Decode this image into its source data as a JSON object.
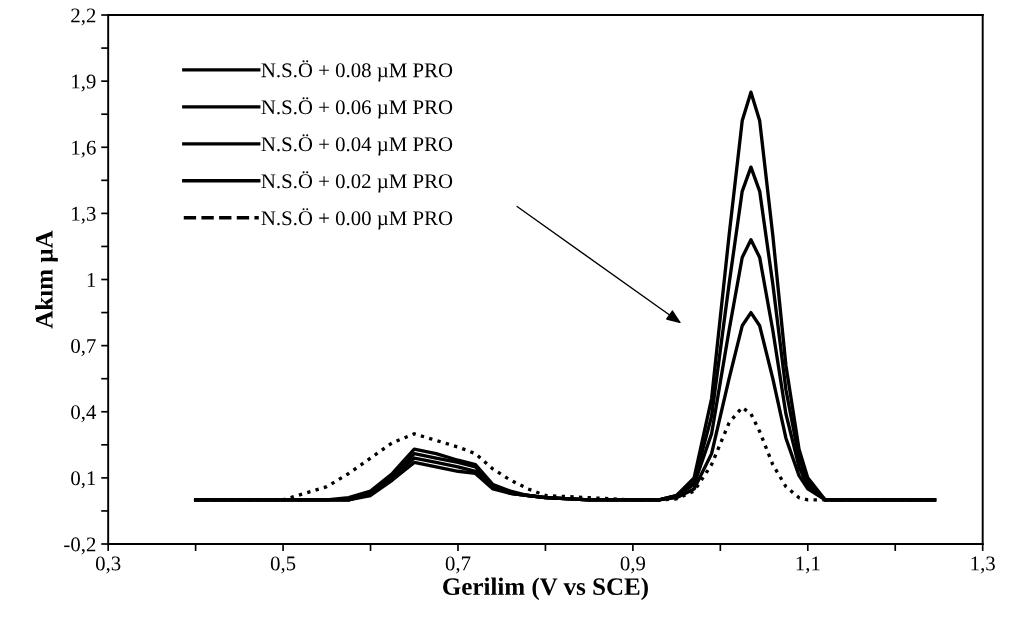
{
  "chart_data": {
    "type": "line",
    "xlabel": "Gerilim (V vs SCE)",
    "ylabel": "Akım µA",
    "x": [
      0.4,
      0.45,
      0.5,
      0.55,
      0.575,
      0.6,
      0.625,
      0.65,
      0.675,
      0.7,
      0.72,
      0.74,
      0.76,
      0.78,
      0.8,
      0.85,
      0.9,
      0.93,
      0.95,
      0.97,
      0.99,
      1.01,
      1.025,
      1.035,
      1.045,
      1.06,
      1.075,
      1.09,
      1.1,
      1.12,
      1.2,
      1.245
    ],
    "series": [
      {
        "name": "N.S.Ö + 0.08 µM PRO",
        "color": "#000000",
        "line_style": "solid",
        "values": [
          0,
          0,
          0,
          0,
          0,
          0.02,
          0.09,
          0.17,
          0.15,
          0.13,
          0.12,
          0.05,
          0.03,
          0.02,
          0.01,
          0,
          0,
          0,
          0.02,
          0.1,
          0.46,
          1.2,
          1.72,
          1.85,
          1.72,
          1.2,
          0.61,
          0.23,
          0.1,
          0,
          0,
          0
        ]
      },
      {
        "name": "N.S.Ö + 0.06 µM PRO",
        "color": "#000000",
        "line_style": "solid",
        "values": [
          0,
          0,
          0,
          0,
          0,
          0.03,
          0.1,
          0.19,
          0.17,
          0.15,
          0.13,
          0.06,
          0.03,
          0.02,
          0.01,
          0,
          0,
          0,
          0.02,
          0.08,
          0.38,
          0.98,
          1.4,
          1.51,
          1.4,
          0.98,
          0.5,
          0.19,
          0.08,
          0,
          0,
          0
        ]
      },
      {
        "name": "N.S.Ö + 0.04 µM PRO",
        "color": "#000000",
        "line_style": "solid",
        "values": [
          0,
          0,
          0,
          0,
          0,
          0.03,
          0.11,
          0.21,
          0.19,
          0.17,
          0.15,
          0.06,
          0.03,
          0.02,
          0.01,
          0,
          0,
          0,
          0.02,
          0.07,
          0.3,
          0.77,
          1.1,
          1.18,
          1.1,
          0.77,
          0.39,
          0.15,
          0.06,
          0,
          0,
          0
        ]
      },
      {
        "name": "N.S.Ö + 0.02 µM PRO",
        "color": "#000000",
        "line_style": "solid",
        "values": [
          0,
          0,
          0,
          0,
          0.01,
          0.04,
          0.12,
          0.23,
          0.21,
          0.18,
          0.16,
          0.07,
          0.04,
          0.02,
          0.01,
          0,
          0,
          0,
          0.01,
          0.05,
          0.21,
          0.55,
          0.79,
          0.85,
          0.79,
          0.55,
          0.28,
          0.11,
          0.05,
          0,
          0,
          0
        ]
      },
      {
        "name": "N.S.Ö + 0.00 µM PRO",
        "color": "#000000",
        "line_style": "dotted",
        "values": [
          0,
          0,
          0,
          0.06,
          0.12,
          0.19,
          0.26,
          0.3,
          0.27,
          0.24,
          0.21,
          0.14,
          0.09,
          0.05,
          0.02,
          0.01,
          0,
          0,
          0.005,
          0.04,
          0.16,
          0.35,
          0.42,
          0.39,
          0.31,
          0.16,
          0.06,
          0.01,
          0,
          0,
          0,
          0
        ]
      }
    ],
    "xlim": [
      0.3,
      1.3
    ],
    "xticks": [
      {
        "value": 0.3,
        "label": "0,3"
      },
      {
        "value": 0.4,
        "label": null
      },
      {
        "value": 0.5,
        "label": "0,5"
      },
      {
        "value": 0.6,
        "label": null
      },
      {
        "value": 0.7,
        "label": "0,7"
      },
      {
        "value": 0.8,
        "label": null
      },
      {
        "value": 0.9,
        "label": "0,9"
      },
      {
        "value": 1.0,
        "label": null
      },
      {
        "value": 1.1,
        "label": "1,1"
      },
      {
        "value": 1.2,
        "label": null
      },
      {
        "value": 1.3,
        "label": "1,3"
      }
    ],
    "ylim": [
      -0.2,
      2.2
    ],
    "yticks": [
      {
        "value": -0.2,
        "label": "-0,2"
      },
      {
        "value": -0.05,
        "label": null
      },
      {
        "value": 0.1,
        "label": "0,1"
      },
      {
        "value": 0.25,
        "label": null
      },
      {
        "value": 0.4,
        "label": "0,4"
      },
      {
        "value": 0.55,
        "label": null
      },
      {
        "value": 0.7,
        "label": "0,7"
      },
      {
        "value": 0.85,
        "label": null
      },
      {
        "value": 1,
        "label": "1"
      },
      {
        "value": 1.15,
        "label": null
      },
      {
        "value": 1.3,
        "label": "1,3"
      },
      {
        "value": 1.45,
        "label": null
      },
      {
        "value": 1.6,
        "label": "1,6"
      },
      {
        "value": 1.75,
        "label": null
      },
      {
        "value": 1.9,
        "label": "1,9"
      },
      {
        "value": 2.05,
        "label": null
      },
      {
        "value": 2.2,
        "label": "2,2"
      }
    ],
    "grid": false,
    "legend": "top left",
    "marker": "none"
  }
}
